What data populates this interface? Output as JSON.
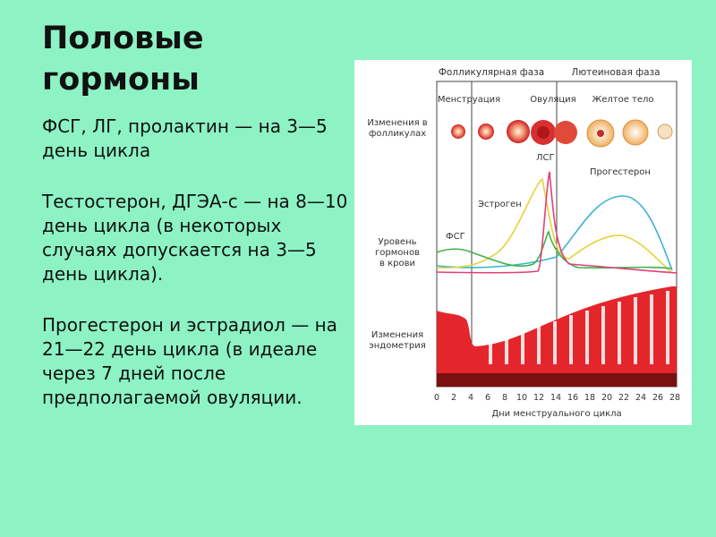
{
  "slide": {
    "title_line1": "Половые",
    "title_line2": "гормоны",
    "paragraphs": [
      "ФСГ, ЛГ, пролактин — на 3—5 день цикла",
      "Тестостерон, ДГЭА-с — на 8—10 день цикла (в некоторых случаях допускается на 3—5 день цикла).",
      "Прогестерон и эстрадиол — на 21—22 день цикла (в идеале через 7 дней после предполагаемой овуляции."
    ]
  },
  "figure": {
    "phase_follicular": "Фолликулярная фаза",
    "phase_luteal": "Лютеиновая фаза",
    "sub_menstruation": "Менструация",
    "sub_ovulation": "Овуляция",
    "sub_corpus_luteum": "Желтое тело",
    "row_follicles_1": "Изменения в",
    "row_follicles_2": "фолликулах",
    "row_hormones_1": "Уровень",
    "row_hormones_2": "гормонов",
    "row_hormones_3": "в крови",
    "row_endometrium_1": "Изменения",
    "row_endometrium_2": "эндометрия",
    "label_fsh": "ФСГ",
    "label_lh": "ЛСГ",
    "label_estrogen": "Эстроген",
    "label_progesterone": "Прогестерон",
    "x_ticks": [
      "0",
      "2",
      "4",
      "6",
      "8",
      "10",
      "12",
      "14",
      "16",
      "18",
      "20",
      "22",
      "24",
      "26",
      "28"
    ],
    "x_axis_label": "Дни менструального цикла",
    "colors": {
      "lh": "#e0407a",
      "fsh": "#3cb24a",
      "estrogen": "#e6d23c",
      "progesterone": "#3bb3d6",
      "endometrium": "#e4262c"
    }
  }
}
